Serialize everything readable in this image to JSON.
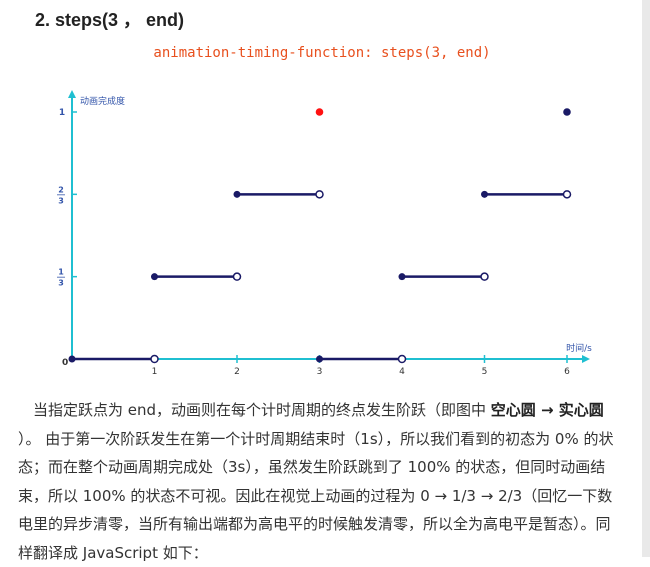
{
  "heading": "2. steps(3 ， end)",
  "figure": {
    "code_title": "animation-timing-function: steps(3, end)",
    "y_axis_label": "动画完成度",
    "x_axis_label": "时间/s",
    "origin_label": "0",
    "y_tick_labels": [
      {
        "kind": "int",
        "text": "1"
      },
      {
        "kind": "frac",
        "num": "2",
        "den": "3"
      },
      {
        "kind": "frac",
        "num": "1",
        "den": "3"
      }
    ],
    "x_tick_labels": [
      "1",
      "2",
      "3",
      "4",
      "5",
      "6"
    ],
    "colors": {
      "axis": "#1fbfd1",
      "title": "#e8501e",
      "line": "#1a1a66",
      "highlight_dot": "#ff1111",
      "label": "#3355aa"
    }
  },
  "chart_data": {
    "type": "line",
    "title": "animation-timing-function: steps(3, end)",
    "xlabel": "时间/s",
    "ylabel": "动画完成度",
    "xlim": [
      0,
      6
    ],
    "ylim": [
      0,
      1
    ],
    "segments": [
      {
        "x": [
          0,
          1
        ],
        "y": [
          0,
          0
        ],
        "start": "closed",
        "end": "open"
      },
      {
        "x": [
          1,
          2
        ],
        "y": [
          0.3333,
          0.3333
        ],
        "start": "closed",
        "end": "open"
      },
      {
        "x": [
          2,
          3
        ],
        "y": [
          0.6667,
          0.6667
        ],
        "start": "closed",
        "end": "open"
      },
      {
        "x": [
          3,
          4
        ],
        "y": [
          0,
          0
        ],
        "start": "closed",
        "end": "open"
      },
      {
        "x": [
          4,
          5
        ],
        "y": [
          0.3333,
          0.3333
        ],
        "start": "closed",
        "end": "open"
      },
      {
        "x": [
          5,
          6
        ],
        "y": [
          0.6667,
          0.6667
        ],
        "start": "closed",
        "end": "open"
      }
    ],
    "points": [
      {
        "x": 3,
        "y": 1,
        "style": "highlight"
      },
      {
        "x": 6,
        "y": 1,
        "style": "closed"
      }
    ]
  },
  "paragraph": {
    "p1": "当指定跃点为 end，动画则在每个计时周期的终点发生阶跃（即图中 ",
    "b1": "空心圆 → 实心圆",
    "p2": " ）。 由于第一次阶跃发生在第一个计时周期结束时（1s），所以我们看到的初态为 0% 的状态；而在整个动画周期完成处（3s），虽然发生阶跃跳到了 100% 的状态，但同时动画结束，所以 100% 的状态不可视。因此在视觉上动画的过程为 0 → 1/3 → 2/3（回忆一下数电里的异步清零，当所有输出端都为高电平的时候触发清零，所以全为高电平是暂态）。同样翻译成 JavaScript 如下："
  }
}
